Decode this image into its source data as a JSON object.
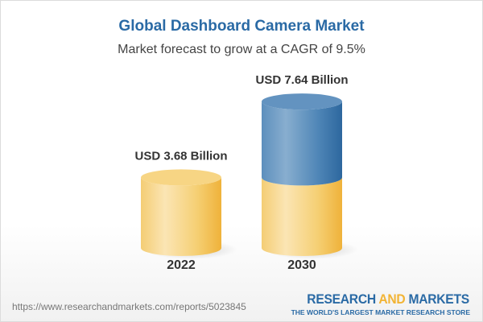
{
  "chart_data": {
    "type": "bar",
    "style": "3d-cylinder",
    "title": "Global Dashboard Camera Market",
    "subtitle": "Market forecast to grow at a CAGR of 9.5%",
    "categories": [
      "2022",
      "2030"
    ],
    "values": [
      3.68,
      7.64
    ],
    "data_labels": [
      "USD 3.68 Billion",
      "USD 7.64 Billion"
    ],
    "unit": "USD Billion",
    "colors": {
      "base": "#f2c154",
      "growth": "#3f7bb0"
    },
    "grid": false
  },
  "footer": {
    "url": "https://www.researchandmarkets.com/reports/5023845",
    "logo_part1": "RESEARCH ",
    "logo_part2": "AND",
    "logo_part3": " MARKETS",
    "logo_tagline": "THE WORLD'S LARGEST MARKET RESEARCH STORE"
  }
}
